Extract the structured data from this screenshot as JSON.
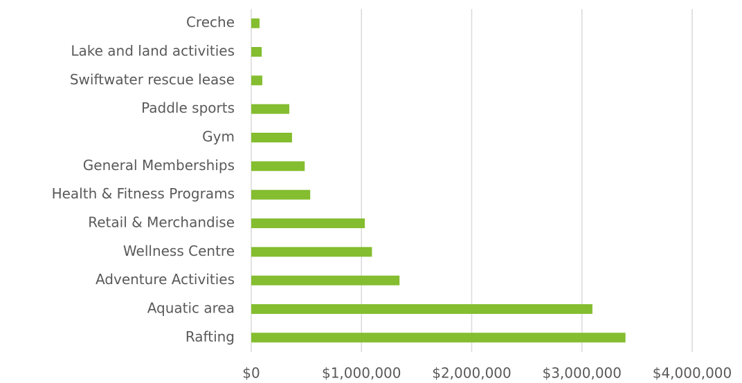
{
  "chart_data": {
    "type": "barh",
    "categories": [
      "Creche",
      "Lake and land activities",
      "Swiftwater rescue lease",
      "Paddle sports",
      "Gym",
      "General Memberships",
      "Health & Fitness Programs",
      "Retail & Merchandise",
      "Wellness Centre",
      "Adventure Activities",
      "Aquatic area",
      "Rafting"
    ],
    "values": [
      75000,
      95000,
      100000,
      345000,
      370000,
      485000,
      535000,
      1030000,
      1095000,
      1345000,
      3095000,
      3395000
    ],
    "color": "#84bd2f",
    "xlim": [
      0,
      4000000
    ],
    "xticks": [
      {
        "value": 0,
        "label": "$0"
      },
      {
        "value": 1000000,
        "label": "$1,000,000"
      },
      {
        "value": 2000000,
        "label": "$2,000,000"
      },
      {
        "value": 3000000,
        "label": "$3,000,000"
      },
      {
        "value": 4000000,
        "label": "$4,000,000"
      }
    ],
    "grid": true
  }
}
